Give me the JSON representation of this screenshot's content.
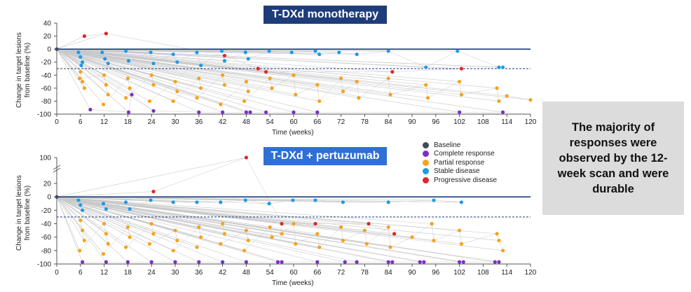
{
  "colors": {
    "baseline": "#3d4a5c",
    "complete": "#7b2fc9",
    "partial": "#f7a21b",
    "stable": "#1e9be6",
    "progressive": "#e0262a",
    "axis": "#1e3c7a",
    "line": "#c8c8c8"
  },
  "legend": {
    "items": [
      {
        "key": "baseline",
        "label": "Baseline"
      },
      {
        "key": "complete",
        "label": "Complete response"
      },
      {
        "key": "partial",
        "label": "Partial response"
      },
      {
        "key": "stable",
        "label": "Stable disease"
      },
      {
        "key": "progressive",
        "label": "Progressive disease"
      }
    ]
  },
  "callout": {
    "text": "The majority of responses were observed by the 12-week scan and were durable"
  },
  "chart_data": [
    {
      "type": "scatter",
      "title": "T-DXd monotherapy",
      "xlabel": "Time (weeks)",
      "ylabel": "Change in target lesions from baseline (%)",
      "xlim": [
        0,
        120
      ],
      "ylim": [
        -100,
        40
      ],
      "xticks": [
        0,
        6,
        12,
        18,
        24,
        30,
        36,
        42,
        48,
        54,
        60,
        66,
        72,
        78,
        84,
        90,
        96,
        102,
        108,
        114,
        120
      ],
      "yticks": [
        40,
        20,
        0,
        -20,
        -40,
        -60,
        -80,
        -100
      ],
      "reference_lines": [
        0,
        -30
      ],
      "series": [
        {
          "name": "Progressive disease",
          "category": "progressive",
          "x": [
            7,
            12.5,
            42.5,
            51,
            53,
            85,
            102.5
          ],
          "y": [
            20,
            24,
            -10,
            -30,
            -35,
            -35,
            -30
          ]
        },
        {
          "name": "Stable disease",
          "category": "stable",
          "x": [
            5.5,
            6,
            6.5,
            6.2,
            11.5,
            12.2,
            13,
            17.5,
            18.2,
            23.8,
            24.5,
            29.5,
            30.5,
            35.5,
            36.5,
            41.8,
            42.5,
            47.8,
            48.5,
            53.8,
            59.5,
            65.5,
            66.5,
            71.5,
            76,
            84,
            93.5,
            101.5,
            112,
            113
          ],
          "y": [
            -5,
            -12,
            -20,
            -25,
            -5,
            -15,
            -22,
            -3,
            -18,
            -5,
            -22,
            -8,
            -20,
            -5,
            -25,
            -3,
            -18,
            -5,
            -15,
            -3,
            -5,
            -3,
            -8,
            -5,
            -8,
            -3,
            -28,
            -3,
            -28,
            -28
          ]
        },
        {
          "name": "Partial response",
          "category": "partial",
          "x": [
            6,
            6.5,
            7,
            5.8,
            12,
            12.5,
            13,
            11.8,
            18,
            18.5,
            17.5,
            24,
            24.5,
            23.5,
            30,
            30.5,
            29.5,
            36,
            36.5,
            35.5,
            42,
            42.5,
            41.5,
            48,
            48.5,
            47.5,
            54,
            54.5,
            60,
            60.5,
            66,
            66.5,
            72,
            72.5,
            76,
            76.5,
            84,
            84.5,
            93.5,
            94,
            102,
            102.5,
            111.5,
            112,
            114,
            120
          ],
          "y": [
            -35,
            -50,
            -60,
            -45,
            -40,
            -55,
            -70,
            -85,
            -45,
            -60,
            -75,
            -40,
            -55,
            -80,
            -50,
            -65,
            -80,
            -45,
            -60,
            -75,
            -40,
            -55,
            -85,
            -50,
            -65,
            -80,
            -45,
            -60,
            -40,
            -70,
            -55,
            -80,
            -45,
            -65,
            -50,
            -75,
            -45,
            -70,
            -55,
            -75,
            -50,
            -70,
            -60,
            -80,
            -72,
            -78
          ]
        },
        {
          "name": "Complete response",
          "category": "complete",
          "x": [
            8.5,
            18.2,
            19,
            24.5,
            36,
            42,
            48,
            49,
            53,
            60,
            66,
            102,
            113
          ],
          "y": [
            -93,
            -97,
            -70,
            -95,
            -97,
            -97,
            -97,
            -97,
            -97,
            -97,
            -97,
            -97,
            -97
          ]
        }
      ]
    },
    {
      "type": "scatter",
      "title": "T-DXd + pertuzumab",
      "xlabel": "Time (weeks)",
      "ylabel": "Change in target lesions from baseline (%)",
      "xlim": [
        0,
        120
      ],
      "ylim": [
        -100,
        100
      ],
      "axis_break": true,
      "xticks": [
        0,
        6,
        12,
        18,
        24,
        30,
        36,
        42,
        48,
        54,
        60,
        66,
        72,
        78,
        84,
        90,
        96,
        102,
        108,
        114,
        120
      ],
      "yticks": [
        100,
        20,
        0,
        -20,
        -40,
        -60,
        -80,
        -100
      ],
      "reference_lines": [
        0,
        -30
      ],
      "series": [
        {
          "name": "Progressive disease",
          "category": "progressive",
          "x": [
            24.5,
            48,
            57,
            65.5,
            79,
            85.5
          ],
          "y": [
            8,
            100,
            -40,
            -40,
            -40,
            -55
          ]
        },
        {
          "name": "Stable disease",
          "category": "stable",
          "x": [
            5.5,
            6,
            6.5,
            11.8,
            12.5,
            17.5,
            18.5,
            23.8,
            29.5,
            35.5,
            41.5,
            47.8,
            53.8,
            59.8,
            65.5,
            72.5,
            84,
            95.5,
            102.5
          ],
          "y": [
            -5,
            -12,
            -20,
            -10,
            -18,
            -8,
            -18,
            -5,
            -8,
            -8,
            -8,
            -5,
            -10,
            -5,
            -5,
            -8,
            -8,
            -5,
            -8
          ]
        },
        {
          "name": "Partial response",
          "category": "partial",
          "x": [
            6,
            6.5,
            7,
            5.8,
            12,
            12.5,
            13,
            11.8,
            18,
            18.5,
            17.5,
            24,
            24.5,
            23.5,
            30,
            30.5,
            29.5,
            36,
            36.5,
            35.5,
            42,
            42.5,
            41.5,
            48,
            48.5,
            47.5,
            54,
            54.5,
            57,
            60,
            60.5,
            66,
            66.5,
            72,
            72.5,
            78,
            78.5,
            84,
            84.5,
            90,
            95,
            95.5,
            102,
            102.5,
            111.5,
            112,
            113
          ],
          "y": [
            -35,
            -50,
            -65,
            -80,
            -40,
            -55,
            -70,
            -85,
            -45,
            -60,
            -75,
            -40,
            -55,
            -70,
            -50,
            -65,
            -80,
            -45,
            -60,
            -75,
            -40,
            -55,
            -70,
            -50,
            -65,
            -80,
            -45,
            -60,
            -55,
            -40,
            -70,
            -55,
            -75,
            -45,
            -65,
            -50,
            -70,
            -45,
            -75,
            -60,
            -40,
            -65,
            -50,
            -70,
            -55,
            -65,
            -80
          ]
        },
        {
          "name": "Complete response",
          "category": "complete",
          "x": [
            6.5,
            12.5,
            18,
            24,
            30,
            36,
            42,
            48,
            56,
            57,
            66,
            73,
            76,
            84,
            85,
            92,
            93,
            102,
            103,
            111,
            112
          ],
          "y": [
            -97,
            -97,
            -97,
            -97,
            -97,
            -97,
            -97,
            -97,
            -97,
            -97,
            -97,
            -97,
            -97,
            -97,
            -97,
            -97,
            -97,
            -97,
            -97,
            -97,
            -97
          ]
        }
      ]
    }
  ]
}
